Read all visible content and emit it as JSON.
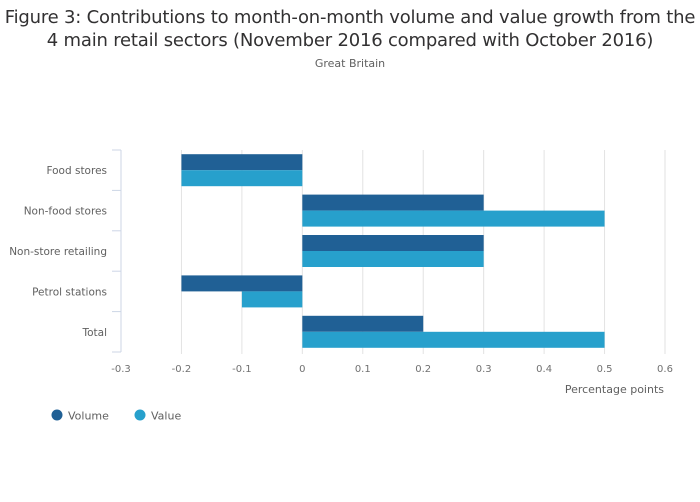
{
  "title": "Figure 3: Contributions to month-on-month volume and value growth from the 4 main retail sectors (November 2016 compared with October 2016)",
  "subtitle": "Great Britain",
  "chart_data": {
    "type": "bar",
    "orientation": "horizontal",
    "title": "Figure 3: Contributions to month-on-month volume and value growth from the 4 main retail sectors (November 2016 compared with October 2016)",
    "subtitle": "Great Britain",
    "categories": [
      "Food stores",
      "Non-food stores",
      "Non-store retailing",
      "Petrol stations",
      "Total"
    ],
    "series": [
      {
        "name": "Volume",
        "color": "#206095",
        "values": [
          -0.2,
          0.3,
          0.3,
          -0.2,
          0.2
        ]
      },
      {
        "name": "Value",
        "color": "#27a0cc",
        "values": [
          -0.2,
          0.5,
          0.3,
          -0.1,
          0.5
        ]
      }
    ],
    "xlabel": "Percentage points",
    "ylabel": "",
    "xlim": [
      -0.3,
      0.6
    ],
    "xticks": [
      "-0.3",
      "-0.2",
      "-0.1",
      "0",
      "0.1",
      "0.2",
      "0.3",
      "0.4",
      "0.5",
      "0.6"
    ],
    "grid": true,
    "legend_position": "bottom-left"
  }
}
